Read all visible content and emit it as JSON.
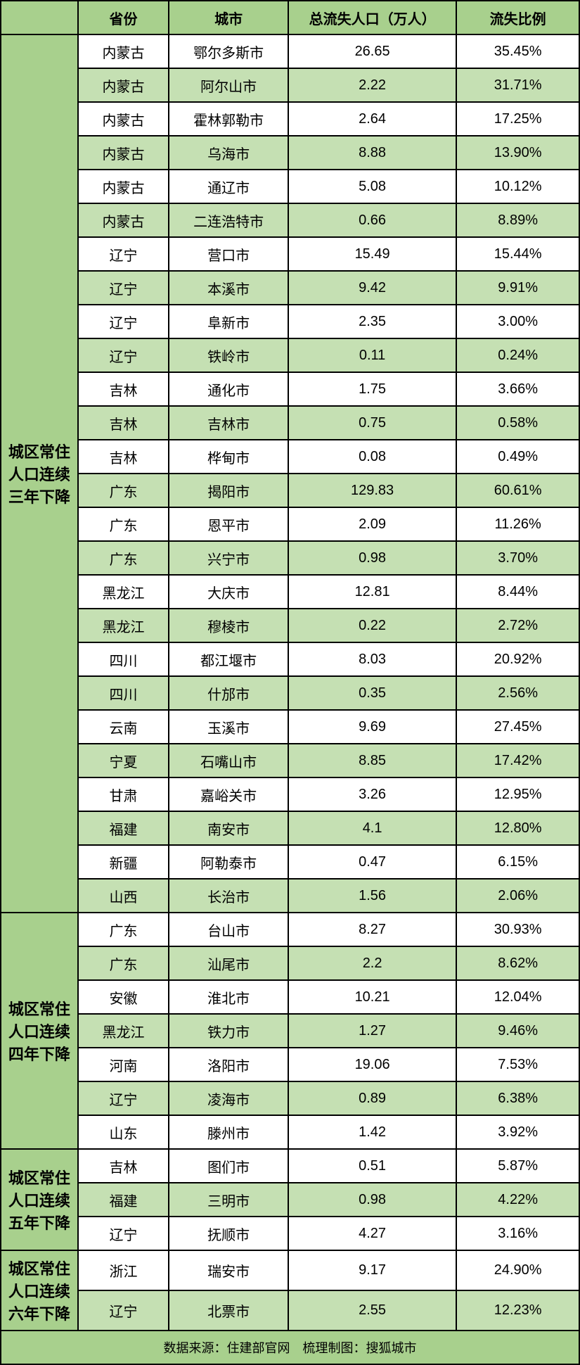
{
  "table": {
    "columns": [
      "省份",
      "城市",
      "总流失人口（万人）",
      "流失比例"
    ],
    "groups": [
      {
        "label": "城区常住人口连续三年下降",
        "rows": [
          {
            "prov": "内蒙古",
            "city": "鄂尔多斯市",
            "pop": "26.65",
            "ratio": "35.45%"
          },
          {
            "prov": "内蒙古",
            "city": "阿尔山市",
            "pop": "2.22",
            "ratio": "31.71%"
          },
          {
            "prov": "内蒙古",
            "city": "霍林郭勒市",
            "pop": "2.64",
            "ratio": "17.25%"
          },
          {
            "prov": "内蒙古",
            "city": "乌海市",
            "pop": "8.88",
            "ratio": "13.90%"
          },
          {
            "prov": "内蒙古",
            "city": "通辽市",
            "pop": "5.08",
            "ratio": "10.12%"
          },
          {
            "prov": "内蒙古",
            "city": "二连浩特市",
            "pop": "0.66",
            "ratio": "8.89%"
          },
          {
            "prov": "辽宁",
            "city": "营口市",
            "pop": "15.49",
            "ratio": "15.44%"
          },
          {
            "prov": "辽宁",
            "city": "本溪市",
            "pop": "9.42",
            "ratio": "9.91%"
          },
          {
            "prov": "辽宁",
            "city": "阜新市",
            "pop": "2.35",
            "ratio": "3.00%"
          },
          {
            "prov": "辽宁",
            "city": "铁岭市",
            "pop": "0.11",
            "ratio": "0.24%"
          },
          {
            "prov": "吉林",
            "city": "通化市",
            "pop": "1.75",
            "ratio": "3.66%"
          },
          {
            "prov": "吉林",
            "city": "吉林市",
            "pop": "0.75",
            "ratio": "0.58%"
          },
          {
            "prov": "吉林",
            "city": "桦甸市",
            "pop": "0.08",
            "ratio": "0.49%"
          },
          {
            "prov": "广东",
            "city": "揭阳市",
            "pop": "129.83",
            "ratio": "60.61%"
          },
          {
            "prov": "广东",
            "city": "恩平市",
            "pop": "2.09",
            "ratio": "11.26%"
          },
          {
            "prov": "广东",
            "city": "兴宁市",
            "pop": "0.98",
            "ratio": "3.70%"
          },
          {
            "prov": "黑龙江",
            "city": "大庆市",
            "pop": "12.81",
            "ratio": "8.44%"
          },
          {
            "prov": "黑龙江",
            "city": "穆棱市",
            "pop": "0.22",
            "ratio": "2.72%"
          },
          {
            "prov": "四川",
            "city": "都江堰市",
            "pop": "8.03",
            "ratio": "20.92%"
          },
          {
            "prov": "四川",
            "city": "什邡市",
            "pop": "0.35",
            "ratio": "2.56%"
          },
          {
            "prov": "云南",
            "city": "玉溪市",
            "pop": "9.69",
            "ratio": "27.45%"
          },
          {
            "prov": "宁夏",
            "city": "石嘴山市",
            "pop": "8.85",
            "ratio": "17.42%"
          },
          {
            "prov": "甘肃",
            "city": "嘉峪关市",
            "pop": "3.26",
            "ratio": "12.95%"
          },
          {
            "prov": "福建",
            "city": "南安市",
            "pop": "4.1",
            "ratio": "12.80%"
          },
          {
            "prov": "新疆",
            "city": "阿勒泰市",
            "pop": "0.47",
            "ratio": "6.15%"
          },
          {
            "prov": "山西",
            "city": "长治市",
            "pop": "1.56",
            "ratio": "2.06%"
          }
        ]
      },
      {
        "label": "城区常住人口连续四年下降",
        "rows": [
          {
            "prov": "广东",
            "city": "台山市",
            "pop": "8.27",
            "ratio": "30.93%"
          },
          {
            "prov": "广东",
            "city": "汕尾市",
            "pop": "2.2",
            "ratio": "8.62%"
          },
          {
            "prov": "安徽",
            "city": "淮北市",
            "pop": "10.21",
            "ratio": "12.04%"
          },
          {
            "prov": "黑龙江",
            "city": "铁力市",
            "pop": "1.27",
            "ratio": "9.46%"
          },
          {
            "prov": "河南",
            "city": "洛阳市",
            "pop": "19.06",
            "ratio": "7.53%"
          },
          {
            "prov": "辽宁",
            "city": "凌海市",
            "pop": "0.89",
            "ratio": "6.38%"
          },
          {
            "prov": "山东",
            "city": "滕州市",
            "pop": "1.42",
            "ratio": "3.92%"
          }
        ]
      },
      {
        "label": "城区常住人口连续五年下降",
        "rows": [
          {
            "prov": "吉林",
            "city": "图们市",
            "pop": "0.51",
            "ratio": "5.87%"
          },
          {
            "prov": "福建",
            "city": "三明市",
            "pop": "0.98",
            "ratio": "4.22%"
          },
          {
            "prov": "辽宁",
            "city": "抚顺市",
            "pop": "4.27",
            "ratio": "3.16%"
          }
        ]
      },
      {
        "label": "城区常住人口连续六年下降",
        "rows": [
          {
            "prov": "浙江",
            "city": "瑞安市",
            "pop": "9.17",
            "ratio": "24.90%"
          },
          {
            "prov": "辽宁",
            "city": "北票市",
            "pop": "2.55",
            "ratio": "12.23%"
          }
        ]
      }
    ],
    "footer": "数据来源：住建部官网　梳理制图：搜狐城市",
    "header_bg": "#a8d08d",
    "row_even_bg": "#ffffff",
    "row_odd_bg": "#c5e0b3",
    "border_color": "#000000"
  }
}
